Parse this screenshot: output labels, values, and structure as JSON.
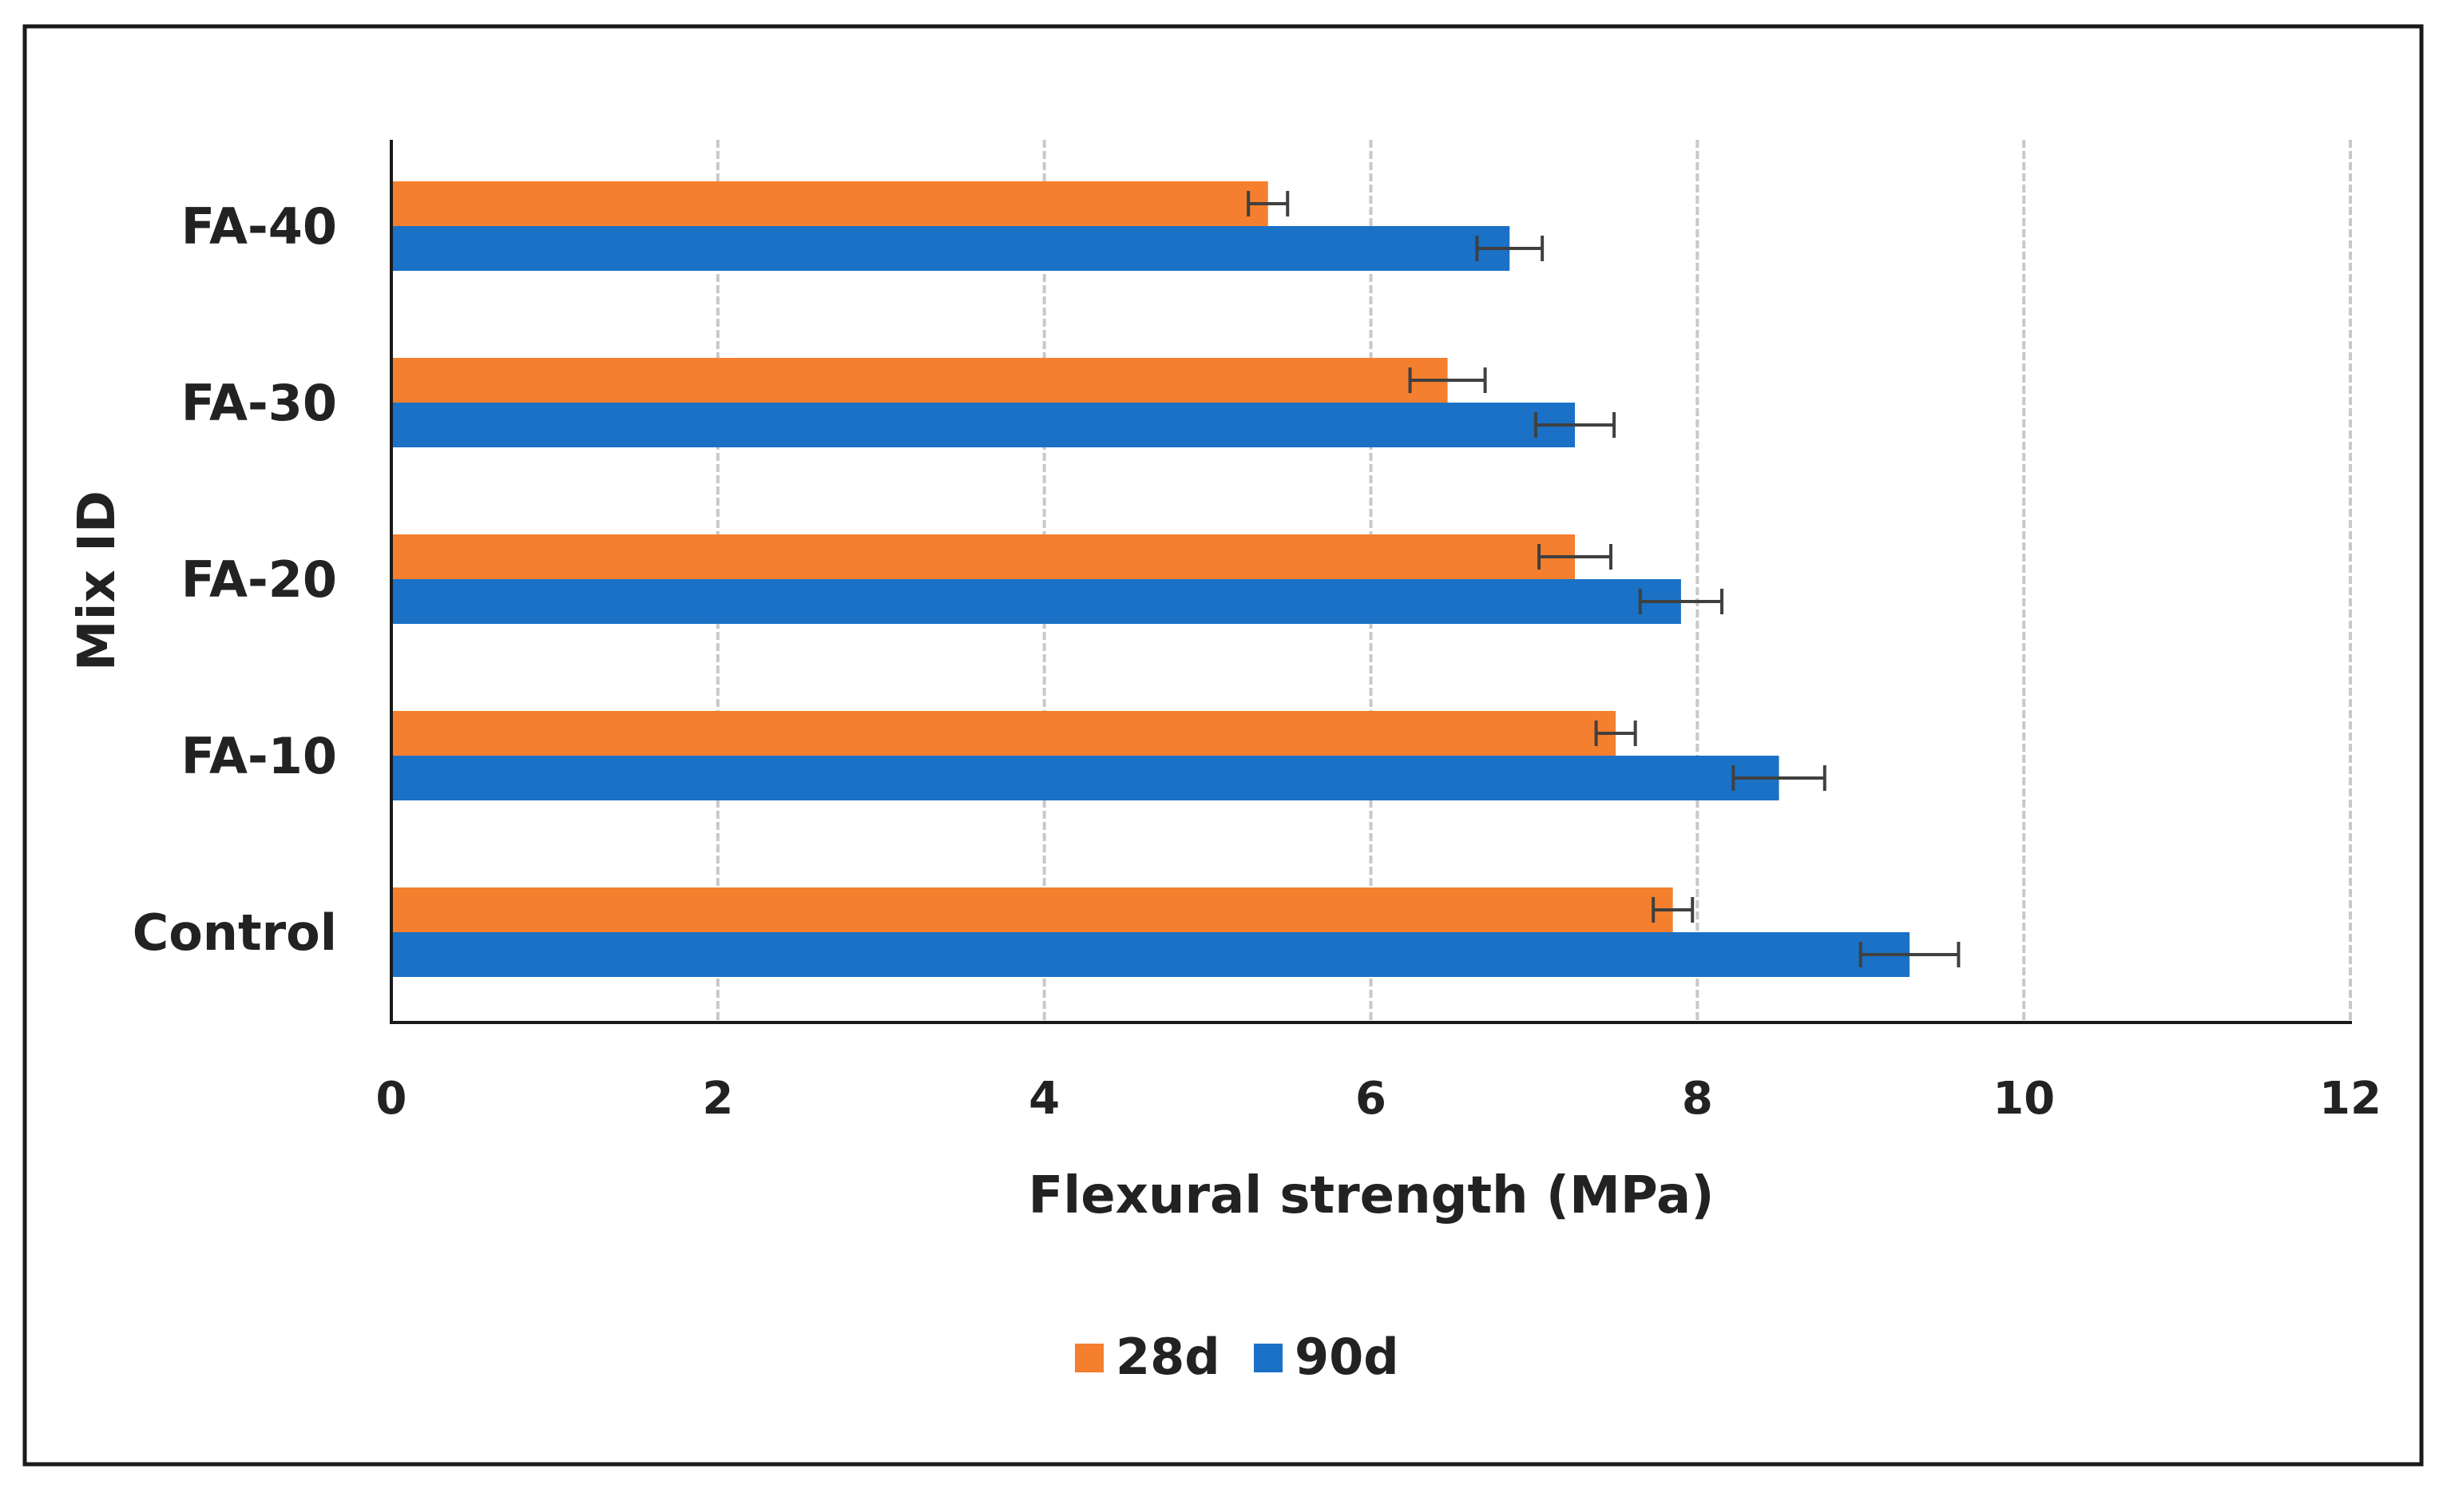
{
  "chart_data": {
    "type": "bar",
    "orientation": "horizontal",
    "title": "",
    "xlabel": "Flexural strength  (MPa)",
    "ylabel": "Mix ID",
    "xlim": [
      0,
      12
    ],
    "x_ticks": [
      0,
      2,
      4,
      6,
      8,
      10,
      12
    ],
    "grid": "vertical dashed",
    "categories": [
      "Control",
      "FA-10",
      "FA-20",
      "FA-30",
      "FA-40"
    ],
    "series": [
      {
        "name": "28d",
        "color": "#F47F2E",
        "values": [
          7.85,
          7.5,
          7.25,
          6.47,
          5.37
        ],
        "errors": [
          0.12,
          0.12,
          0.22,
          0.23,
          0.12
        ]
      },
      {
        "name": "90d",
        "color": "#1A71C6",
        "values": [
          9.3,
          8.5,
          7.9,
          7.25,
          6.85
        ],
        "errors": [
          0.3,
          0.28,
          0.25,
          0.24,
          0.2
        ]
      }
    ],
    "legend_position": "bottom-center"
  },
  "colors": {
    "frame": "#1a1a1a",
    "grid": "#c8c8c8",
    "axis": "#1a1a1a",
    "errorbar": "#404040"
  }
}
